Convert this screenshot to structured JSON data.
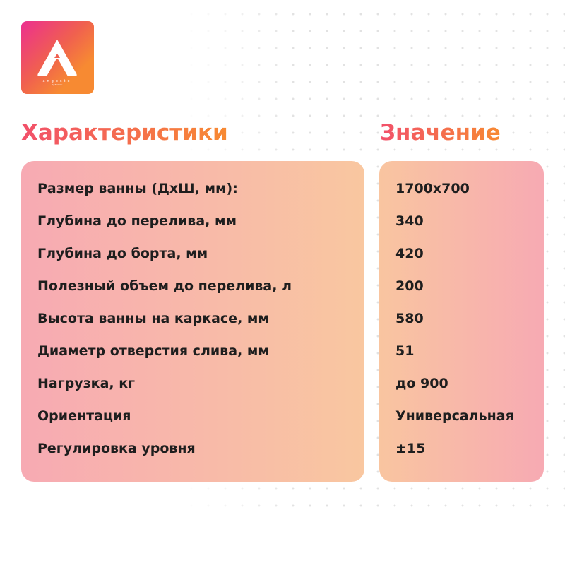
{
  "logo": {
    "text": "angosto",
    "subtext": "by Radomir",
    "colors": [
      "#ec2f8f",
      "#f78a32"
    ]
  },
  "headers": {
    "characteristics": "Характеристики",
    "value": "Значение"
  },
  "rows": [
    {
      "label": "Размер ванны (ДхШ, мм):",
      "value": "1700х700"
    },
    {
      "label": "Глубина до перелива, мм",
      "value": "340"
    },
    {
      "label": "Глубина до борта, мм",
      "value": "420"
    },
    {
      "label": "Полезный объем до перелива, л",
      "value": "200"
    },
    {
      "label": "Высота ванны на каркасе, мм",
      "value": "580"
    },
    {
      "label": "Диаметр отверстия слива, мм",
      "value": "51"
    },
    {
      "label": "Нагрузка, кг",
      "value": "до 900"
    },
    {
      "label": "Ориентация",
      "value": "Универсальная"
    },
    {
      "label": "Регулировка уровня",
      "value": "±15"
    }
  ]
}
